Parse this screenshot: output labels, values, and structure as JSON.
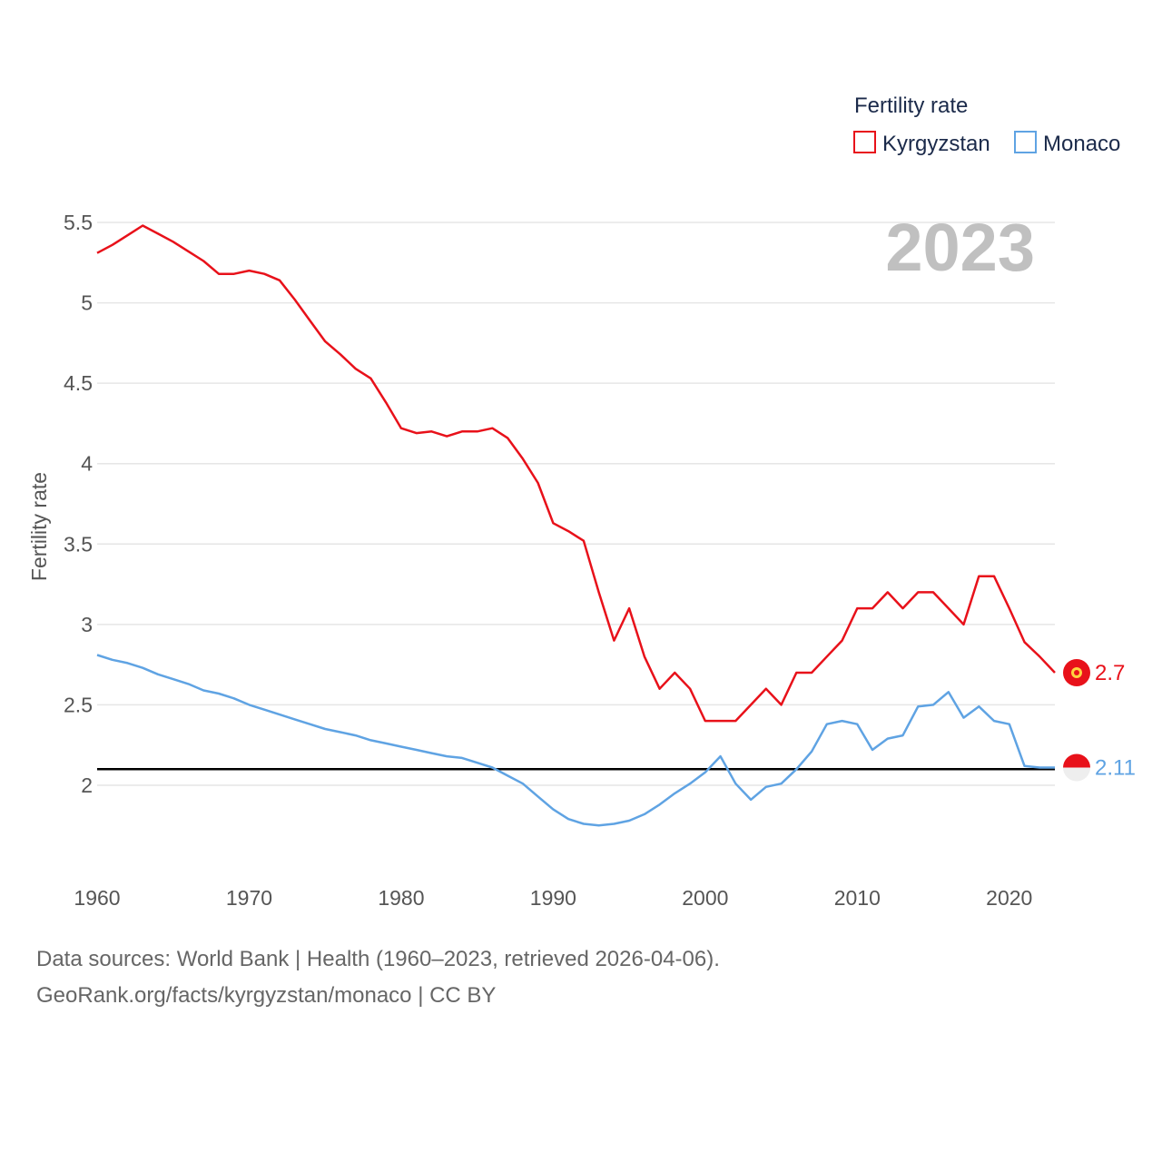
{
  "chart_data": {
    "type": "line",
    "legend_title": "Fertility rate",
    "ylabel": "Fertility rate",
    "year_label": "2023",
    "xlim": [
      1960,
      2023
    ],
    "ylim": [
      1.55,
      5.6
    ],
    "yticks": [
      2,
      2.5,
      3,
      3.5,
      4,
      4.5,
      5,
      5.5
    ],
    "ytick_labels": [
      "2",
      "2.5",
      "3",
      "3.5",
      "4",
      "4.5",
      "5",
      "5.5"
    ],
    "xticks": [
      1960,
      1970,
      1980,
      1990,
      2000,
      2010,
      2020
    ],
    "xtick_labels": [
      "1960",
      "1970",
      "1980",
      "1990",
      "2000",
      "2010",
      "2020"
    ],
    "reference_line": 2.1,
    "x": [
      1960,
      1961,
      1962,
      1963,
      1964,
      1965,
      1966,
      1967,
      1968,
      1969,
      1970,
      1971,
      1972,
      1973,
      1974,
      1975,
      1976,
      1977,
      1978,
      1979,
      1980,
      1981,
      1982,
      1983,
      1984,
      1985,
      1986,
      1987,
      1988,
      1989,
      1990,
      1991,
      1992,
      1993,
      1994,
      1995,
      1996,
      1997,
      1998,
      1999,
      2000,
      2001,
      2002,
      2003,
      2004,
      2005,
      2006,
      2007,
      2008,
      2009,
      2010,
      2011,
      2012,
      2013,
      2014,
      2015,
      2016,
      2017,
      2018,
      2019,
      2020,
      2021,
      2022,
      2023
    ],
    "series": [
      {
        "name": "Kyrgyzstan",
        "color": "#e8111a",
        "end_label": "2.7",
        "values": [
          5.31,
          5.36,
          5.42,
          5.48,
          5.43,
          5.38,
          5.32,
          5.26,
          5.18,
          5.18,
          5.2,
          5.18,
          5.14,
          5.02,
          4.89,
          4.76,
          4.68,
          4.59,
          4.53,
          4.38,
          4.22,
          4.19,
          4.2,
          4.17,
          4.2,
          4.2,
          4.22,
          4.16,
          4.03,
          3.88,
          3.63,
          3.58,
          3.52,
          3.2,
          2.9,
          3.1,
          2.8,
          2.6,
          2.7,
          2.6,
          2.4,
          2.4,
          2.4,
          2.5,
          2.6,
          2.5,
          2.7,
          2.7,
          2.8,
          2.9,
          3.1,
          3.1,
          3.2,
          3.1,
          3.2,
          3.2,
          3.1,
          3.0,
          3.3,
          3.3,
          3.1,
          2.89,
          2.8,
          2.7
        ]
      },
      {
        "name": "Monaco",
        "color": "#5fa3e3",
        "end_label": "2.11",
        "values": [
          2.81,
          2.78,
          2.76,
          2.73,
          2.69,
          2.66,
          2.63,
          2.59,
          2.57,
          2.54,
          2.5,
          2.47,
          2.44,
          2.41,
          2.38,
          2.35,
          2.33,
          2.31,
          2.28,
          2.26,
          2.24,
          2.22,
          2.2,
          2.18,
          2.17,
          2.14,
          2.11,
          2.06,
          2.01,
          1.93,
          1.85,
          1.79,
          1.76,
          1.75,
          1.76,
          1.78,
          1.82,
          1.88,
          1.95,
          2.01,
          2.08,
          2.18,
          2.01,
          1.91,
          1.99,
          2.01,
          2.1,
          2.21,
          2.38,
          2.4,
          2.38,
          2.22,
          2.29,
          2.31,
          2.49,
          2.5,
          2.58,
          2.42,
          2.49,
          2.4,
          2.38,
          2.12,
          2.11,
          2.11
        ]
      }
    ]
  },
  "footer": {
    "source_line": "Data sources: World Bank | Health (1960–2023, retrieved 2026-04-06).",
    "url_line": "GeoRank.org/facts/kyrgyzstan/monaco | CC BY"
  }
}
